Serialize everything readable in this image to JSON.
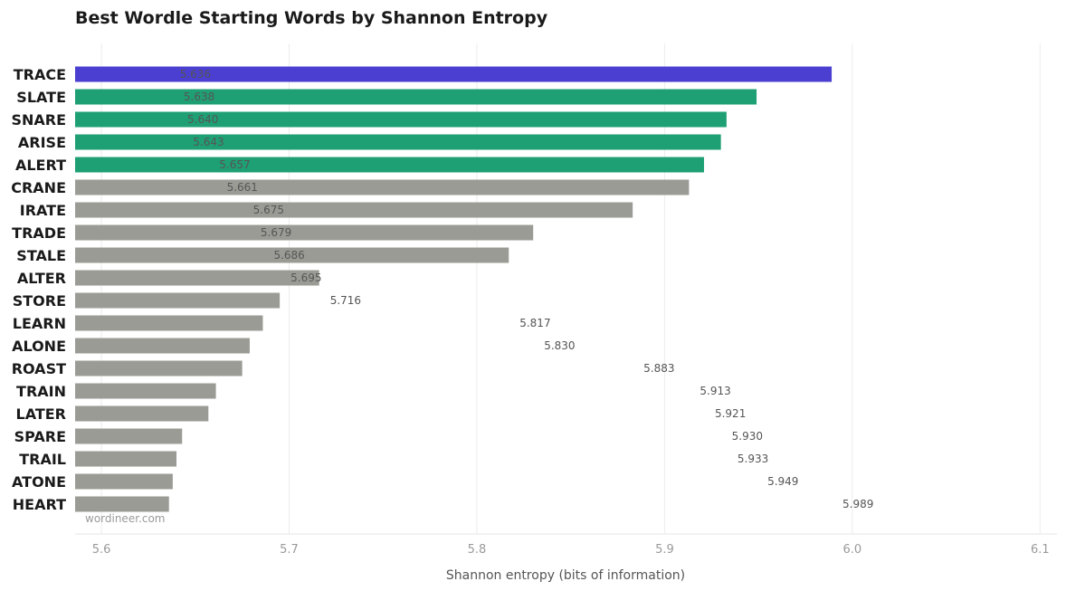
{
  "chart_data": {
    "type": "bar",
    "orientation": "horizontal",
    "title": "Best Wordle Starting Words by Shannon Entropy",
    "xlabel": "Shannon entropy (bits of information)",
    "ylabel": "",
    "categories": [
      "TRACE",
      "SLATE",
      "SNARE",
      "ARISE",
      "ALERT",
      "CRANE",
      "IRATE",
      "TRADE",
      "STALE",
      "ALTER",
      "STORE",
      "LEARN",
      "ALONE",
      "ROAST",
      "TRAIN",
      "LATER",
      "SPARE",
      "TRAIL",
      "ATONE",
      "HEART"
    ],
    "bar_values": [
      5.989,
      5.949,
      5.933,
      5.93,
      5.921,
      5.913,
      5.883,
      5.83,
      5.817,
      5.716,
      5.695,
      5.686,
      5.679,
      5.675,
      5.661,
      5.657,
      5.643,
      5.64,
      5.638,
      5.636
    ],
    "labels": [
      "5.636",
      "5.638",
      "5.640",
      "5.643",
      "5.657",
      "5.661",
      "5.675",
      "5.679",
      "5.686",
      "5.695",
      "5.716",
      "5.817",
      "5.830",
      "5.883",
      "5.913",
      "5.921",
      "5.930",
      "5.933",
      "5.949",
      "5.989"
    ],
    "label_values": [
      5.636,
      5.638,
      5.64,
      5.643,
      5.657,
      5.661,
      5.675,
      5.679,
      5.686,
      5.695,
      5.716,
      5.817,
      5.83,
      5.883,
      5.913,
      5.921,
      5.93,
      5.933,
      5.949,
      5.989
    ],
    "highlight": [
      "top",
      "green",
      "green",
      "green",
      "green",
      "gray",
      "gray",
      "gray",
      "gray",
      "gray",
      "gray",
      "gray",
      "gray",
      "gray",
      "gray",
      "gray",
      "gray",
      "gray",
      "gray",
      "gray"
    ],
    "colors": {
      "top": "#4a3fd1",
      "green": "#1fa074",
      "gray": "#9b9b96"
    },
    "xlim": [
      5.586,
      6.109
    ],
    "xticks": [
      "5.6",
      "5.7",
      "5.8",
      "5.9",
      "6.0",
      "6.1"
    ],
    "xtick_values": [
      5.6,
      5.7,
      5.8,
      5.9,
      6.0,
      6.1
    ],
    "grid": true,
    "credit": "wordineer.com"
  }
}
